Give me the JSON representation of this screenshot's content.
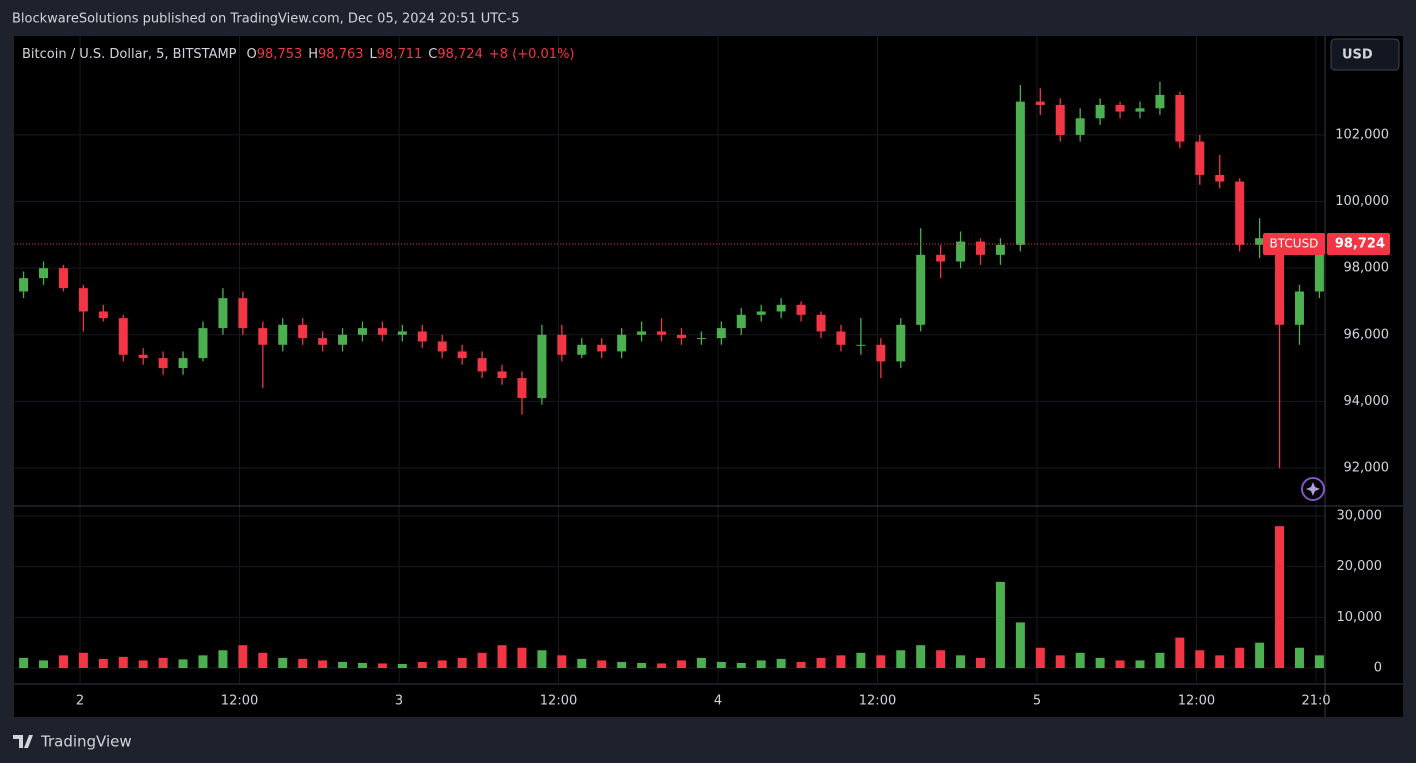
{
  "header": {
    "title": "BlockwareSolutions published on TradingView.com, Dec 05, 2024 20:51 UTC-5"
  },
  "legend": {
    "instrument": "Bitcoin / U.S. Dollar, 5, BITSTAMP",
    "ohlc": [
      {
        "label": "O",
        "value": "98,753"
      },
      {
        "label": "H",
        "value": "98,763"
      },
      {
        "label": "L",
        "value": "98,711"
      },
      {
        "label": "C",
        "value": "98,724"
      }
    ],
    "change": "+8 (+0.01%)"
  },
  "currency_button": "USD",
  "footer": {
    "brand": "TradingView"
  },
  "chart_data": {
    "type": "candlestick",
    "up_color": "#4caf50",
    "down_color": "#f23645",
    "x": [
      -4.25,
      -2.75,
      -1.25,
      0.25,
      1.75,
      3.25,
      4.75,
      6.25,
      7.75,
      9.25,
      10.75,
      12.25,
      13.75,
      15.25,
      16.75,
      18.25,
      19.75,
      21.25,
      22.75,
      24.25,
      25.75,
      27.25,
      28.75,
      30.25,
      31.75,
      33.25,
      34.75,
      36.25,
      37.75,
      39.25,
      40.75,
      42.25,
      43.75,
      45.25,
      46.75,
      48.25,
      49.75,
      51.25,
      52.75,
      54.25,
      55.75,
      57.25,
      58.75,
      60.25,
      61.75,
      63.25,
      64.75,
      66.25,
      67.75,
      69.25,
      70.75,
      72.25,
      73.75,
      75.25,
      76.75,
      78.25,
      79.75,
      81.25,
      82.75,
      84.25,
      85.75,
      87.25,
      88.75,
      90.25,
      91.75,
      93.25
    ],
    "open": [
      97300,
      97700,
      98000,
      97400,
      96700,
      96500,
      95400,
      95300,
      95000,
      95300,
      96200,
      97100,
      96200,
      95700,
      96300,
      95900,
      95700,
      96000,
      96200,
      96000,
      96100,
      95800,
      95500,
      95300,
      94900,
      94700,
      94100,
      96000,
      95400,
      95700,
      95500,
      96000,
      96100,
      96000,
      95900,
      95900,
      96200,
      96600,
      96700,
      96900,
      96600,
      96100,
      95700,
      95700,
      95200,
      96300,
      98400,
      98200,
      98800,
      98400,
      98700,
      103000,
      102900,
      102000,
      102500,
      102900,
      102700,
      102800,
      103200,
      101800,
      100800,
      100600,
      98700,
      98900,
      96300,
      97300
    ],
    "high": [
      97900,
      98200,
      98100,
      97500,
      96900,
      96600,
      95600,
      95500,
      95500,
      96400,
      97400,
      97300,
      96400,
      96500,
      96500,
      96100,
      96200,
      96400,
      96400,
      96300,
      96300,
      96000,
      95700,
      95500,
      95100,
      94900,
      96300,
      96300,
      95900,
      95900,
      96200,
      96400,
      96500,
      96200,
      96100,
      96400,
      96800,
      96900,
      97100,
      97000,
      96700,
      96300,
      96500,
      95900,
      96500,
      99200,
      98700,
      99100,
      98900,
      98900,
      103500,
      103400,
      103100,
      102800,
      103100,
      103000,
      103000,
      103600,
      103300,
      102000,
      101400,
      100700,
      99500,
      99000,
      97500,
      98800
    ],
    "low": [
      97100,
      97500,
      97300,
      96100,
      96400,
      95200,
      95100,
      94800,
      94800,
      95200,
      96000,
      96000,
      94400,
      95500,
      95700,
      95500,
      95500,
      95800,
      95800,
      95800,
      95600,
      95300,
      95100,
      94700,
      94500,
      93600,
      93900,
      95200,
      95300,
      95300,
      95300,
      95800,
      95800,
      95700,
      95700,
      95700,
      96000,
      96400,
      96500,
      96400,
      95900,
      95500,
      95400,
      94700,
      95000,
      96100,
      97700,
      98000,
      98100,
      98100,
      98500,
      102600,
      101800,
      101800,
      102300,
      102500,
      102500,
      102600,
      101600,
      100500,
      100400,
      98500,
      98300,
      92000,
      95700,
      97100
    ],
    "close": [
      97700,
      98000,
      97400,
      96700,
      96500,
      95400,
      95300,
      95000,
      95300,
      96200,
      97100,
      96200,
      95700,
      96300,
      95900,
      95700,
      96000,
      96200,
      96000,
      96100,
      95800,
      95500,
      95300,
      94900,
      94700,
      94100,
      96000,
      95400,
      95700,
      95500,
      96000,
      96100,
      96000,
      95900,
      95900,
      96200,
      96600,
      96700,
      96900,
      96600,
      96100,
      95700,
      95700,
      95200,
      96300,
      98400,
      98200,
      98800,
      98400,
      98700,
      103000,
      102900,
      102000,
      102500,
      102900,
      102700,
      102800,
      103200,
      101800,
      100800,
      100600,
      98700,
      98900,
      96300,
      97300,
      98724
    ],
    "xlim": [
      -4.97,
      93.67
    ],
    "xticks": [
      {
        "value": 0,
        "label": "2"
      },
      {
        "value": 12,
        "label": "12:00"
      },
      {
        "value": 24,
        "label": "3"
      },
      {
        "value": 36,
        "label": "12:00"
      },
      {
        "value": 48,
        "label": "4"
      },
      {
        "value": 60,
        "label": "12:00"
      },
      {
        "value": 72,
        "label": "5"
      },
      {
        "value": 84,
        "label": "12:00"
      },
      {
        "value": 93,
        "label": "21:0"
      }
    ],
    "ylim": [
      90890,
      104970
    ],
    "yticks": [
      {
        "value": 92000,
        "label": "92,000"
      },
      {
        "value": 94000,
        "label": "94,000"
      },
      {
        "value": 96000,
        "label": "96,000"
      },
      {
        "value": 98000,
        "label": "98,000"
      },
      {
        "value": 100000,
        "label": "100,000"
      },
      {
        "value": 102000,
        "label": "102,000"
      }
    ],
    "grid": true,
    "last_price": {
      "symbol": "BTCUSD",
      "value": 98724,
      "label": "98,724"
    },
    "volume": {
      "values": [
        2000,
        1500,
        2500,
        3000,
        1800,
        2200,
        1500,
        2000,
        1700,
        2500,
        3500,
        4500,
        3000,
        2000,
        1800,
        1500,
        1200,
        1000,
        900,
        800,
        1200,
        1500,
        2000,
        3000,
        4500,
        4000,
        3500,
        2500,
        1800,
        1500,
        1200,
        1000,
        900,
        1500,
        2000,
        1200,
        1000,
        1500,
        1800,
        1200,
        2000,
        2500,
        3000,
        2500,
        3500,
        4500,
        3500,
        2500,
        2000,
        17000,
        9000,
        4000,
        2500,
        3000,
        2000,
        1500,
        1500,
        3000,
        6000,
        3500,
        2500,
        4000,
        5000,
        28000,
        4000,
        2500
      ],
      "ylim": [
        -2960,
        31780
      ],
      "yticks": [
        0,
        {
          "value": 10000,
          "label": "10,000"
        },
        {
          "value": 20000,
          "label": "20,000"
        },
        {
          "value": 30000,
          "label": "30,000"
        }
      ]
    }
  }
}
